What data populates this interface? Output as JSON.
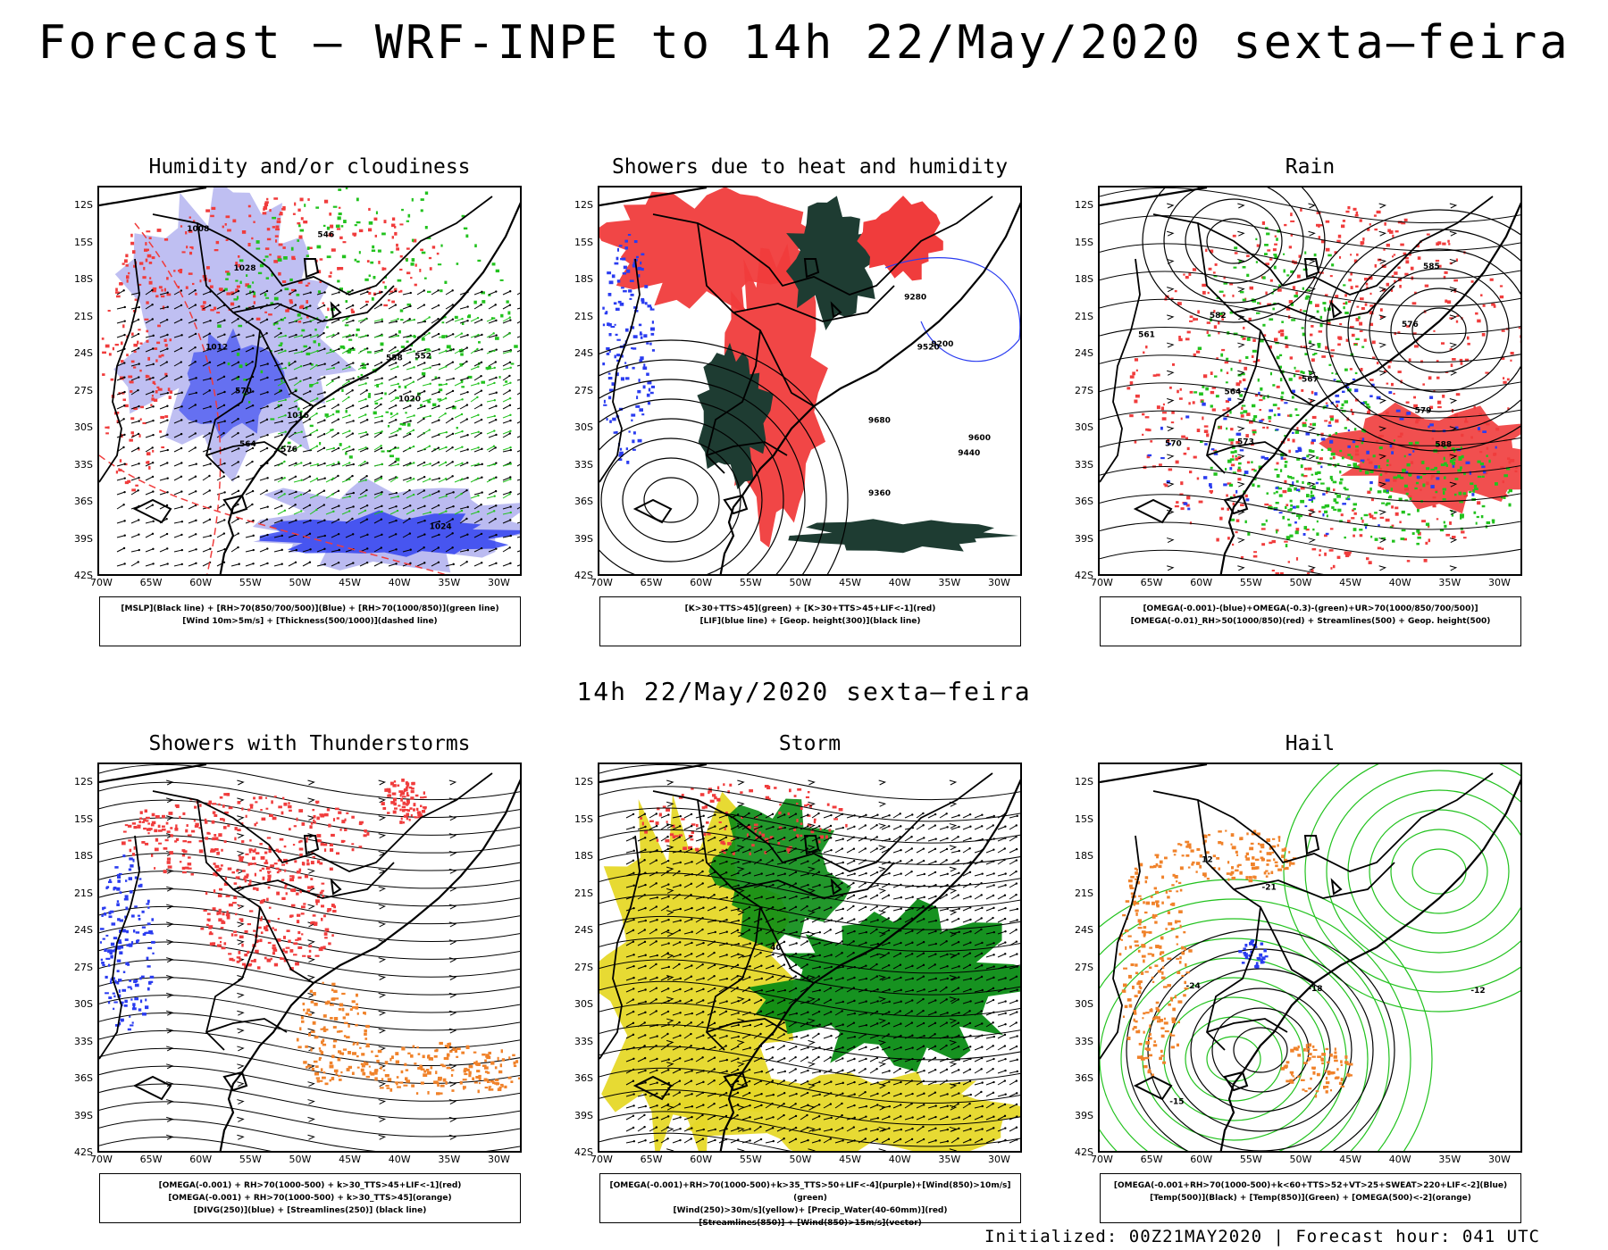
{
  "header": {
    "title": "Forecast — WRF-INPE to 14h 22/May/2020 sexta—feira",
    "subtitle": "14h 22/May/2020 sexta—feira"
  },
  "axes": {
    "lat_labels": [
      "12S",
      "15S",
      "18S",
      "21S",
      "24S",
      "27S",
      "30S",
      "33S",
      "36S",
      "39S",
      "42S"
    ],
    "lon_labels": [
      "70W",
      "65W",
      "60W",
      "55W",
      "50W",
      "45W",
      "40W",
      "35W",
      "30W"
    ]
  },
  "panels": [
    {
      "title": "Humidity and/or cloudiness",
      "legend": [
        "[MSLP](Black line) + [RH>70(850/700/500)](Blue) + [RH>70(1000/850)](green line)",
        "[Wind 10m>5m/s] + [Thickness(500/1000)](dashed line)"
      ],
      "contour_labels": [
        "1016",
        "1012",
        "1008",
        "1020",
        "1024",
        "1028",
        "576",
        "570",
        "564",
        "558",
        "552",
        "546"
      ]
    },
    {
      "title": "Showers due to heat and humidity",
      "legend": [
        "[K>30+TTS>45](green) + [K>30+TTS>45+LIF<-1](red)",
        "[LIF](blue line) + [Geop. height(300)](black line)"
      ],
      "contour_labels": [
        "9680",
        "9600",
        "9520",
        "9440",
        "9360",
        "9280",
        "9200"
      ]
    },
    {
      "title": "Rain",
      "legend": [
        "[OMEGA(-0.001)-(blue)+OMEGA(-0.3)-(green)+UR>70(1000/850/700/500)]",
        "[OMEGA(-0.01)_RH>50(1000/850)(red) + Streamlines(500) + Geop. height(500)"
      ],
      "contour_labels": [
        "588",
        "585",
        "582",
        "579",
        "576",
        "573",
        "570",
        "567",
        "564",
        "561"
      ]
    },
    {
      "title": "Showers with Thunderstorms",
      "legend": [
        "[OMEGA(-0.001) + RH>70(1000-500) + k>30_TTS>45+LIF<-1](red)",
        "[OMEGA(-0.001) + RH>70(1000-500) + k>30_TTS>45](orange)",
        "[DIVG(250)](blue) + [Streamlines(250)] (black line)"
      ],
      "contour_labels": []
    },
    {
      "title": "Storm",
      "legend": [
        "[OMEGA(-0.001)+RH>70(1000-500)+k>35_TTS>50+LIF<-4](purple)+[Wind(850)>10m/s](green)",
        "[Wind(250)>30m/s](yellow)+ [Precip_Water(40-60mm)](red)",
        "[Streamlines(850)] + [Wind(850)>15m/s](vector)"
      ],
      "contour_labels": [
        "40"
      ]
    },
    {
      "title": "Hail",
      "legend": [
        "[OMEGA(-0.001+RH>70(1000-500)+k<60+TTS>52+VT>25+SWEAT>220+LIF<-2](Blue)",
        "[Temp(500)](Black) + [Temp(850)](Green) + [OMEGA(500)<-2](orange)"
      ],
      "contour_labels": [
        "12",
        "-12",
        "-15",
        "-18",
        "-21",
        "-24"
      ]
    }
  ],
  "footer": {
    "text": "Initialized: 00Z21MAY2020 | Forecast hour: 041 UTC"
  },
  "colors": {
    "red": "#f03c3c",
    "green": "#22c21e",
    "blue": "#2a3cf0",
    "lavender": "#b4b4f0",
    "orange": "#f0822a",
    "yellow": "#e6d828",
    "darkgreen": "#1e3c32",
    "darkgreen2": "#0a8c14"
  }
}
